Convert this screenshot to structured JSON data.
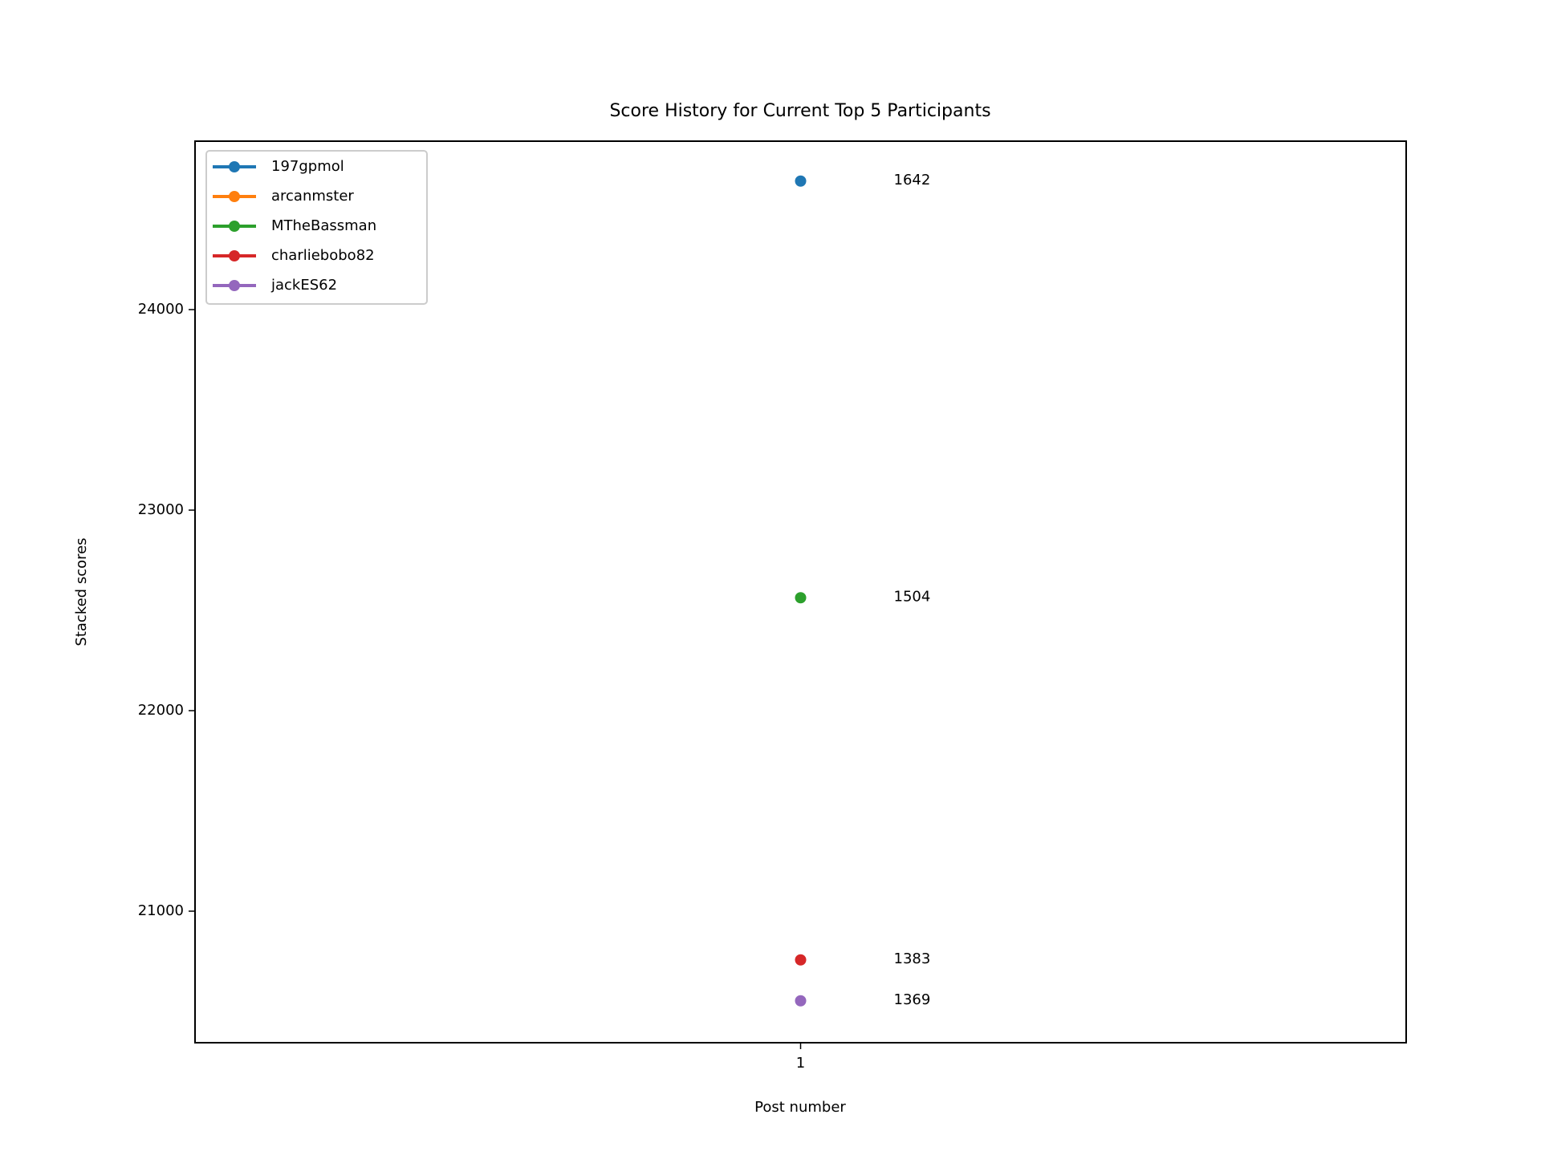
{
  "chart_data": {
    "type": "line",
    "title": "Score History for Current Top 5 Participants",
    "x_label": "Post number",
    "y_label": "Stacked scores",
    "x": [
      1
    ],
    "xlim": [
      0.95,
      1.05
    ],
    "xticks": [
      1
    ],
    "ylim": [
      20344,
      24840
    ],
    "yticks": [
      21000,
      22000,
      23000,
      24000
    ],
    "legend": "upper left",
    "series": [
      {
        "name": "197gpmol",
        "color": "#1f77b4",
        "values": [
          24641
        ],
        "label": 1642
      },
      {
        "name": "arcanmster",
        "color": "#ff7f0e",
        "values": [
          null
        ]
      },
      {
        "name": "MTheBassman",
        "color": "#2ca02c",
        "values": [
          22563
        ],
        "label": 1504
      },
      {
        "name": "charliebobo82",
        "color": "#d62728",
        "values": [
          20757
        ],
        "label": 1383
      },
      {
        "name": "jackES62",
        "color": "#9467bd",
        "values": [
          20553
        ],
        "label": 1369
      }
    ]
  }
}
